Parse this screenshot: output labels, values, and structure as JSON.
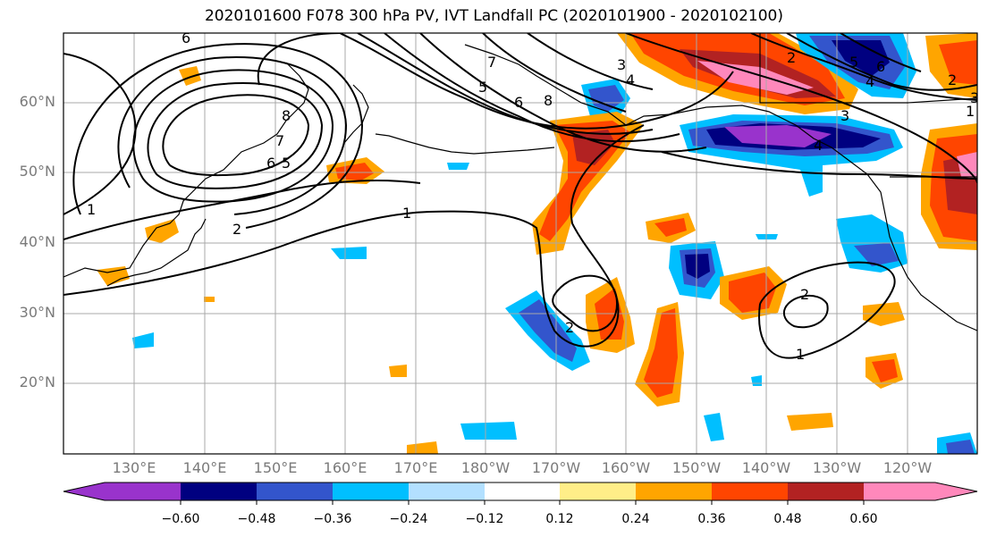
{
  "title": "2020101600 F078 300 hPa PV, IVT Landfall PC (2020101900 - 2020102100)",
  "latitudes": [
    "60°N",
    "50°N",
    "40°N",
    "30°N",
    "20°N"
  ],
  "longitudes": [
    "130°E",
    "140°E",
    "150°E",
    "160°E",
    "170°E",
    "180°W",
    "170°W",
    "160°W",
    "150°W",
    "140°W",
    "130°W",
    "120°W"
  ],
  "colorbar": {
    "colors": [
      "#9933cc",
      "#000080",
      "#3355cc",
      "#00bfff",
      "#b3e0ff",
      "#ffffff",
      "#ffee88",
      "#ffa500",
      "#ff4500",
      "#b22222",
      "#ff88bb"
    ],
    "ticks": [
      "−0.60",
      "−0.48",
      "−0.36",
      "−0.24",
      "−0.12",
      "0.12",
      "0.24",
      "0.36",
      "0.48",
      "0.60"
    ]
  },
  "contour_labels": [
    "6",
    "8",
    "7",
    "6",
    "5",
    "1",
    "2",
    "1",
    "2",
    "1",
    "8",
    "6",
    "5",
    "7",
    "4",
    "3",
    "2",
    "4",
    "3",
    "5",
    "2",
    "1",
    "2",
    "3",
    "6",
    "4"
  ]
}
